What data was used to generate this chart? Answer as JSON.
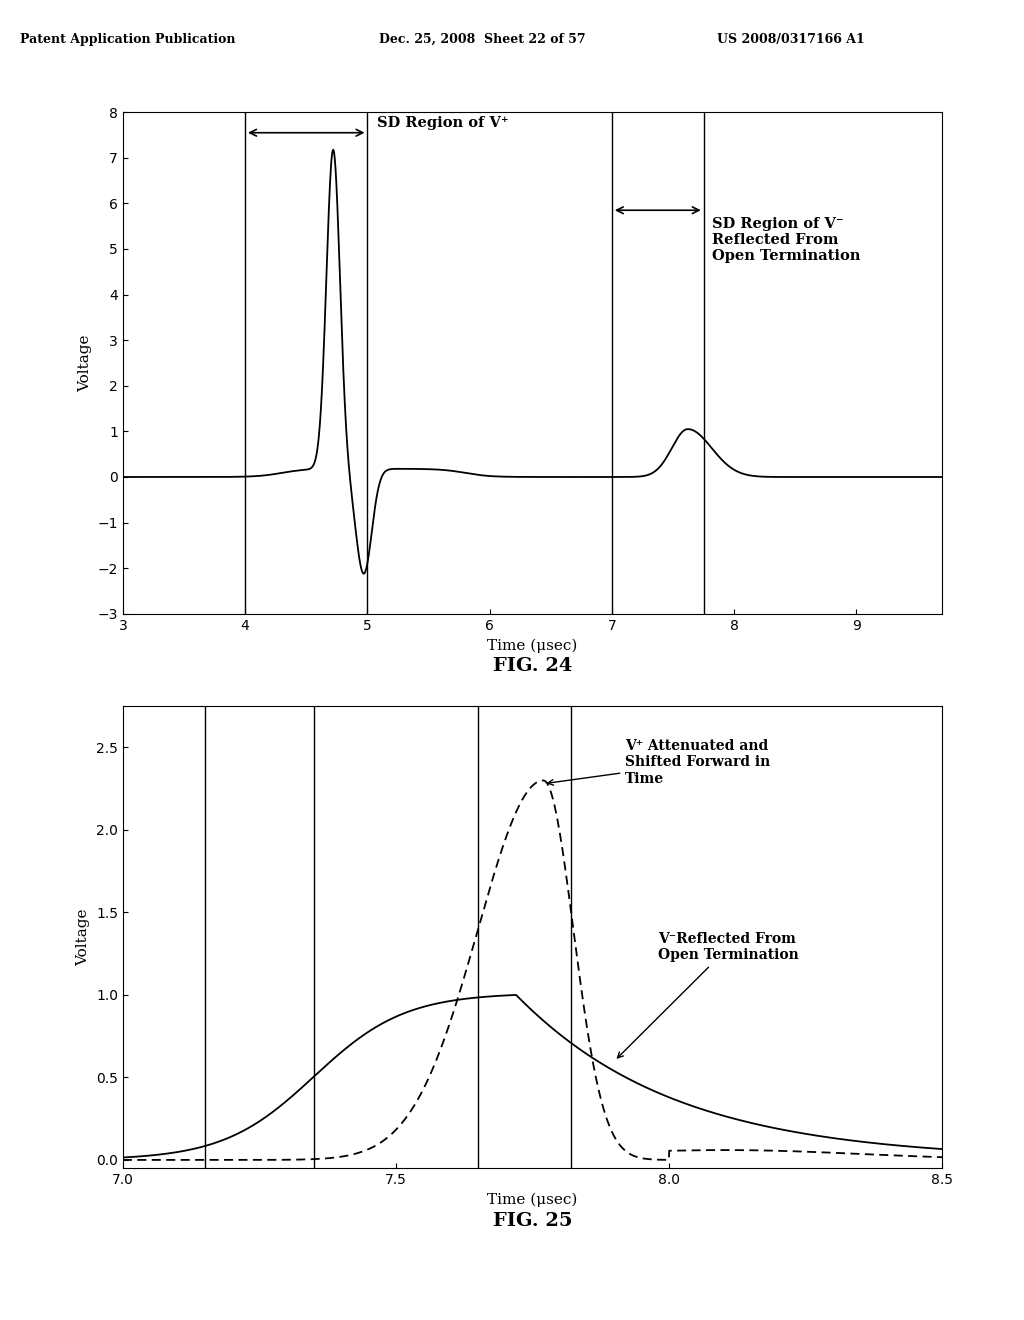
{
  "header_left": "Patent Application Publication",
  "header_mid": "Dec. 25, 2008  Sheet 22 of 57",
  "header_right": "US 2008/0317166 A1",
  "fig24": {
    "title": "FIG. 24",
    "xlabel": "Time (μsec)",
    "ylabel": "Voltage",
    "xlim": [
      3,
      9.7
    ],
    "ylim": [
      -3,
      8
    ],
    "xticks": [
      3,
      4,
      5,
      6,
      7,
      8,
      9
    ],
    "yticks": [
      -3,
      -2,
      -1,
      0,
      1,
      2,
      3,
      4,
      5,
      6,
      7,
      8
    ],
    "vlines": [
      4.0,
      5.0,
      7.0,
      7.75
    ],
    "label1": "SD Region of V⁺",
    "label2": "SD Region of V⁻\nReflected From\nOpen Termination"
  },
  "fig25": {
    "title": "FIG. 25",
    "xlabel": "Time (μsec)",
    "ylabel": "Voltage",
    "xlim": [
      7.0,
      8.5
    ],
    "ylim": [
      -0.05,
      2.75
    ],
    "xticks": [
      7.0,
      7.5,
      8.0,
      8.5
    ],
    "yticks": [
      0.0,
      0.5,
      1.0,
      1.5,
      2.0,
      2.5
    ],
    "vlines": [
      7.15,
      7.35,
      7.65,
      7.82
    ],
    "label1": "V⁺ Attenuated and\nShifted Forward in\nTime",
    "label2": "V⁻Reflected From\nOpen Termination"
  },
  "background_color": "#ffffff",
  "line_color": "#000000"
}
